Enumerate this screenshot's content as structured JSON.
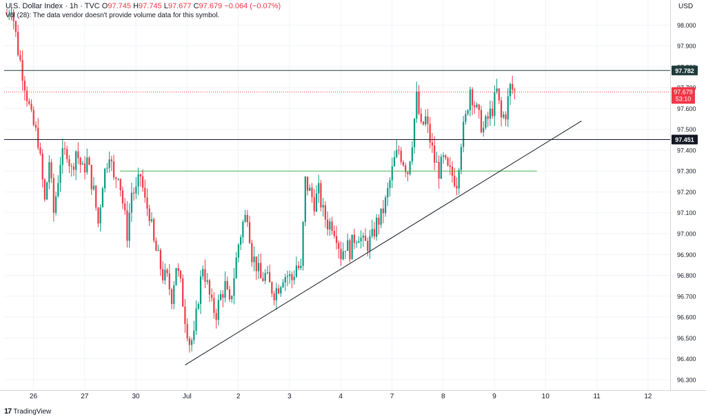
{
  "legend": {
    "title": "U.S. Dollar Index · 1h · TVC",
    "o_label": "O",
    "o_value": "97.745",
    "h_label": "H",
    "h_value": "97.745",
    "l_label": "L",
    "l_value": "97.677",
    "c_label": "C",
    "c_value": "97.679",
    "change": "−0.064 (−0.07%)",
    "vol_text": "Vol (28): The data vendor doesn't provide volume data for this symbol."
  },
  "currency": "USD",
  "footer": {
    "brand": "TradingView",
    "logo_glyph": "17"
  },
  "colors": {
    "up": "#089981",
    "down": "#f23645",
    "resistance": "#1e3a3a",
    "support": "#131722",
    "mid": "#4caf50",
    "trend": "#131722",
    "grid": "#f0f3fa"
  },
  "chart_data": {
    "type": "candlestick",
    "title": "U.S. Dollar Index · 1h · TVC",
    "ylim": [
      96.25,
      98.12
    ],
    "y_ticks": [
      "96.300",
      "96.400",
      "96.500",
      "96.600",
      "96.700",
      "96.800",
      "96.900",
      "97.000",
      "97.100",
      "97.200",
      "97.300",
      "97.400",
      "97.500",
      "97.600",
      "97.700",
      "97.800",
      "97.900",
      "98.000"
    ],
    "x_ticks": [
      {
        "label": "26",
        "bar": 2
      },
      {
        "label": "27",
        "bar": 25
      },
      {
        "label": "30",
        "bar": 48
      },
      {
        "label": "Jul",
        "bar": 71
      },
      {
        "label": "2",
        "bar": 94
      },
      {
        "label": "3",
        "bar": 117
      },
      {
        "label": "4",
        "bar": 140
      },
      {
        "label": "7",
        "bar": 163
      },
      {
        "label": "8",
        "bar": 186
      },
      {
        "label": "9",
        "bar": 209
      },
      {
        "label": "10",
        "bar": 232
      },
      {
        "label": "11",
        "bar": 255
      },
      {
        "label": "12",
        "bar": 278
      }
    ],
    "bars_total_slots": 290,
    "close_path": [
      [
        0,
        98.05
      ],
      [
        2,
        98.1
      ],
      [
        5,
        97.88
      ],
      [
        8,
        97.72
      ],
      [
        11,
        97.55
      ],
      [
        14,
        97.45
      ],
      [
        17,
        97.15
      ],
      [
        19,
        97.35
      ],
      [
        21,
        97.1
      ],
      [
        24,
        97.35
      ],
      [
        27,
        97.4
      ],
      [
        29,
        97.3
      ],
      [
        31,
        97.4
      ],
      [
        34,
        97.3
      ],
      [
        36,
        97.35
      ],
      [
        39,
        97.2
      ],
      [
        41,
        97.05
      ],
      [
        43,
        97.25
      ],
      [
        46,
        97.4
      ],
      [
        48,
        97.25
      ],
      [
        50,
        97.3
      ],
      [
        52,
        97.15
      ],
      [
        54,
        97.0
      ],
      [
        56,
        97.2
      ],
      [
        58,
        97.2
      ],
      [
        60,
        97.28
      ],
      [
        62,
        97.15
      ],
      [
        64,
        97.1
      ],
      [
        66,
        96.95
      ],
      [
        68,
        96.88
      ],
      [
        70,
        96.8
      ],
      [
        72,
        96.78
      ],
      [
        74,
        96.7
      ],
      [
        76,
        96.85
      ],
      [
        78,
        96.75
      ],
      [
        80,
        96.6
      ],
      [
        82,
        96.48
      ],
      [
        84,
        96.5
      ],
      [
        86,
        96.7
      ],
      [
        88,
        96.85
      ],
      [
        90,
        96.75
      ],
      [
        92,
        96.65
      ],
      [
        94,
        96.62
      ],
      [
        96,
        96.7
      ],
      [
        98,
        96.75
      ],
      [
        100,
        96.65
      ],
      [
        102,
        96.8
      ],
      [
        104,
        96.95
      ],
      [
        106,
        97.05
      ],
      [
        108,
        97.1
      ],
      [
        110,
        96.9
      ],
      [
        112,
        96.85
      ],
      [
        114,
        96.78
      ],
      [
        116,
        96.8
      ],
      [
        118,
        96.75
      ],
      [
        120,
        96.72
      ],
      [
        122,
        96.75
      ],
      [
        124,
        96.8
      ],
      [
        126,
        96.8
      ],
      [
        128,
        96.78
      ],
      [
        130,
        96.85
      ],
      [
        132,
        96.82
      ],
      [
        134,
        97.25
      ],
      [
        136,
        97.2
      ],
      [
        138,
        97.15
      ],
      [
        140,
        97.2
      ],
      [
        142,
        97.1
      ],
      [
        144,
        97.05
      ],
      [
        146,
        97.05
      ],
      [
        148,
        97.0
      ],
      [
        150,
        96.9
      ],
      [
        152,
        96.95
      ],
      [
        154,
        96.92
      ],
      [
        156,
        96.98
      ],
      [
        158,
        97.0
      ],
      [
        160,
        96.95
      ],
      [
        162,
        96.95
      ],
      [
        164,
        96.98
      ],
      [
        166,
        97.05
      ],
      [
        168,
        97.08
      ],
      [
        170,
        97.15
      ],
      [
        172,
        97.25
      ],
      [
        174,
        97.35
      ],
      [
        176,
        97.4
      ],
      [
        178,
        97.35
      ],
      [
        180,
        97.3
      ],
      [
        182,
        97.45
      ],
      [
        184,
        97.65
      ],
      [
        186,
        97.5
      ],
      [
        188,
        97.55
      ],
      [
        190,
        97.45
      ],
      [
        192,
        97.35
      ],
      [
        194,
        97.3
      ],
      [
        196,
        97.35
      ],
      [
        198,
        97.3
      ],
      [
        200,
        97.28
      ],
      [
        202,
        97.25
      ],
      [
        204,
        97.45
      ],
      [
        206,
        97.55
      ],
      [
        208,
        97.7
      ],
      [
        210,
        97.62
      ],
      [
        212,
        97.55
      ],
      [
        214,
        97.5
      ],
      [
        216,
        97.55
      ],
      [
        218,
        97.6
      ],
      [
        220,
        97.68
      ],
      [
        222,
        97.55
      ],
      [
        224,
        97.58
      ],
      [
        226,
        97.7
      ],
      [
        228,
        97.68
      ]
    ],
    "h_lines": [
      {
        "name": "resistance",
        "value": 97.782,
        "label": "97.782",
        "x_start_bar": 0
      },
      {
        "name": "support",
        "value": 97.451,
        "label": "97.451",
        "x_start_bar": 0
      },
      {
        "name": "mid",
        "value": 97.3,
        "x_start_bar": 52,
        "x_end_bar": 238
      }
    ],
    "trendline": {
      "x1_bar": 80,
      "y1": 96.37,
      "x2_bar": 258,
      "y2": 97.54
    },
    "last_price": {
      "value": 97.679,
      "label": "97.679",
      "countdown": "53:10"
    }
  }
}
